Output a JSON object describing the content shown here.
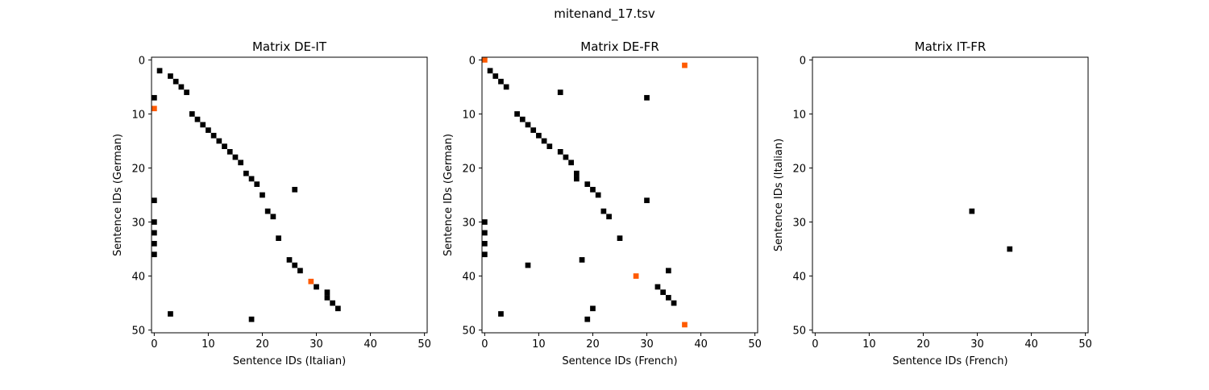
{
  "figure_title": "mitenand_17.tsv",
  "colors": {
    "match": "#000000",
    "highlight": "#ff5a00",
    "axes": "#000000",
    "background": "#ffffff"
  },
  "chart_data": [
    {
      "type": "heatmap",
      "title": "Matrix DE-IT",
      "xlabel": "Sentence IDs (Italian)",
      "ylabel": "Sentence IDs (German)",
      "xlim": [
        -0.5,
        50.5
      ],
      "ylim": [
        50.5,
        -0.5
      ],
      "xticks": [
        0,
        10,
        20,
        30,
        40,
        50
      ],
      "yticks": [
        0,
        10,
        20,
        30,
        40,
        50
      ],
      "grid": false,
      "cells": [
        {
          "x": 1,
          "y": 2
        },
        {
          "x": 3,
          "y": 3
        },
        {
          "x": 4,
          "y": 4
        },
        {
          "x": 5,
          "y": 5
        },
        {
          "x": 6,
          "y": 6
        },
        {
          "x": 0,
          "y": 7
        },
        {
          "x": 7,
          "y": 10
        },
        {
          "x": 8,
          "y": 11
        },
        {
          "x": 9,
          "y": 12
        },
        {
          "x": 10,
          "y": 13
        },
        {
          "x": 11,
          "y": 14
        },
        {
          "x": 12,
          "y": 15
        },
        {
          "x": 13,
          "y": 16
        },
        {
          "x": 14,
          "y": 17
        },
        {
          "x": 15,
          "y": 18
        },
        {
          "x": 16,
          "y": 19
        },
        {
          "x": 17,
          "y": 21
        },
        {
          "x": 18,
          "y": 22
        },
        {
          "x": 19,
          "y": 23
        },
        {
          "x": 26,
          "y": 24
        },
        {
          "x": 20,
          "y": 25
        },
        {
          "x": 0,
          "y": 26
        },
        {
          "x": 21,
          "y": 28
        },
        {
          "x": 22,
          "y": 29
        },
        {
          "x": 0,
          "y": 30
        },
        {
          "x": 0,
          "y": 32
        },
        {
          "x": 23,
          "y": 33
        },
        {
          "x": 0,
          "y": 34
        },
        {
          "x": 0,
          "y": 36
        },
        {
          "x": 25,
          "y": 37
        },
        {
          "x": 26,
          "y": 38
        },
        {
          "x": 27,
          "y": 39
        },
        {
          "x": 30,
          "y": 42
        },
        {
          "x": 32,
          "y": 43
        },
        {
          "x": 32,
          "y": 44
        },
        {
          "x": 33,
          "y": 45
        },
        {
          "x": 34,
          "y": 46
        },
        {
          "x": 3,
          "y": 47
        },
        {
          "x": 18,
          "y": 48
        }
      ],
      "highlight_cells": [
        {
          "x": 0,
          "y": 9
        },
        {
          "x": 29,
          "y": 41
        }
      ]
    },
    {
      "type": "heatmap",
      "title": "Matrix DE-FR",
      "xlabel": "Sentence IDs (French)",
      "ylabel": "Sentence IDs (German)",
      "xlim": [
        -0.5,
        50.5
      ],
      "ylim": [
        50.5,
        -0.5
      ],
      "xticks": [
        0,
        10,
        20,
        30,
        40,
        50
      ],
      "yticks": [
        0,
        10,
        20,
        30,
        40,
        50
      ],
      "grid": false,
      "cells": [
        {
          "x": 1,
          "y": 2
        },
        {
          "x": 2,
          "y": 3
        },
        {
          "x": 3,
          "y": 4
        },
        {
          "x": 4,
          "y": 5
        },
        {
          "x": 14,
          "y": 6
        },
        {
          "x": 30,
          "y": 7
        },
        {
          "x": 6,
          "y": 10
        },
        {
          "x": 7,
          "y": 11
        },
        {
          "x": 8,
          "y": 12
        },
        {
          "x": 9,
          "y": 13
        },
        {
          "x": 10,
          "y": 14
        },
        {
          "x": 11,
          "y": 15
        },
        {
          "x": 12,
          "y": 16
        },
        {
          "x": 14,
          "y": 17
        },
        {
          "x": 15,
          "y": 18
        },
        {
          "x": 16,
          "y": 19
        },
        {
          "x": 17,
          "y": 21
        },
        {
          "x": 17,
          "y": 22
        },
        {
          "x": 19,
          "y": 23
        },
        {
          "x": 20,
          "y": 24
        },
        {
          "x": 21,
          "y": 25
        },
        {
          "x": 30,
          "y": 26
        },
        {
          "x": 22,
          "y": 28
        },
        {
          "x": 23,
          "y": 29
        },
        {
          "x": 0,
          "y": 30
        },
        {
          "x": 0,
          "y": 32
        },
        {
          "x": 25,
          "y": 33
        },
        {
          "x": 0,
          "y": 34
        },
        {
          "x": 0,
          "y": 36
        },
        {
          "x": 18,
          "y": 37
        },
        {
          "x": 8,
          "y": 38
        },
        {
          "x": 34,
          "y": 39
        },
        {
          "x": 32,
          "y": 42
        },
        {
          "x": 33,
          "y": 43
        },
        {
          "x": 34,
          "y": 44
        },
        {
          "x": 35,
          "y": 45
        },
        {
          "x": 20,
          "y": 46
        },
        {
          "x": 3,
          "y": 47
        },
        {
          "x": 19,
          "y": 48
        }
      ],
      "highlight_cells": [
        {
          "x": 0,
          "y": 0
        },
        {
          "x": 37,
          "y": 1
        },
        {
          "x": 28,
          "y": 40
        },
        {
          "x": 37,
          "y": 49
        }
      ]
    },
    {
      "type": "heatmap",
      "title": "Matrix IT-FR",
      "xlabel": "Sentence IDs (French)",
      "ylabel": "Sentence IDs (Italian)",
      "xlim": [
        -0.5,
        50.5
      ],
      "ylim": [
        50.5,
        -0.5
      ],
      "xticks": [
        0,
        10,
        20,
        30,
        40,
        50
      ],
      "yticks": [
        0,
        10,
        20,
        30,
        40,
        50
      ],
      "grid": false,
      "cells": [
        {
          "x": 29,
          "y": 28
        },
        {
          "x": 36,
          "y": 35
        }
      ],
      "highlight_cells": []
    }
  ]
}
